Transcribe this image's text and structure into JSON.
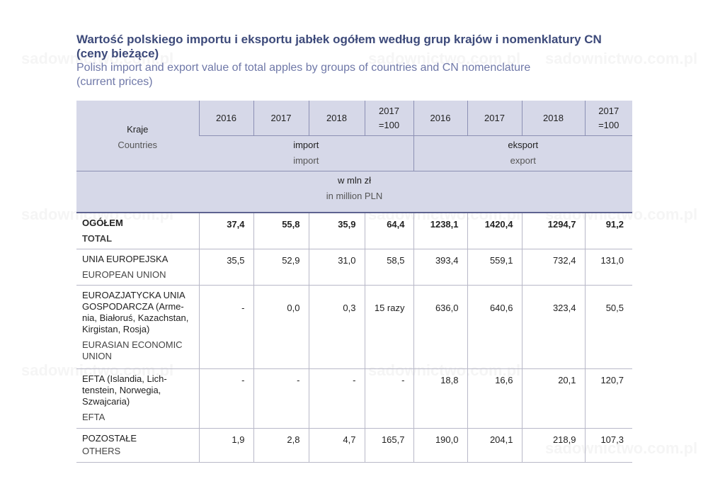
{
  "watermark": "sadownictwo.com.pl",
  "title": {
    "pl_line1": "Wartość polskiego importu i eksportu jabłek ogółem według grup krajów i nomenklatury CN",
    "pl_line2": "(ceny bieżące)",
    "en_line1": "Polish import and export value of total apples by groups of countries and CN nomenclature",
    "en_line2": "(current prices)"
  },
  "header": {
    "countries_pl": "Kraje",
    "countries_en": "Countries",
    "years": [
      "2016",
      "2017",
      "2018"
    ],
    "index_line1": "2017",
    "index_line2": "=100",
    "import_pl": "import",
    "import_en": "import",
    "export_pl": "eksport",
    "export_en": "export",
    "unit_pl": "w mln zł",
    "unit_en": "in million PLN"
  },
  "rows": [
    {
      "label_pl": "OGÓŁEM",
      "label_en": "TOTAL",
      "values": [
        "37,4",
        "55,8",
        "35,9",
        "64,4",
        "1238,1",
        "1420,4",
        "1294,7",
        "91,2"
      ]
    },
    {
      "label_pl": "UNIA EUROPEJSKA",
      "label_en": "EUROPEAN UNION",
      "values": [
        "35,5",
        "52,9",
        "31,0",
        "58,5",
        "393,4",
        "559,1",
        "732,4",
        "131,0"
      ]
    },
    {
      "label_pl": "EUROAZJATYCKA UNIA GOSPODARCZA (Arme-nia, Białoruś, Kazachstan, Kirgistan, Rosja)",
      "label_en": "EURASIAN ECONOMIC UNION",
      "values": [
        "-",
        "0,0",
        "0,3",
        "15 razy",
        "636,0",
        "640,6",
        "323,4",
        "50,5"
      ]
    },
    {
      "label_pl": "EFTA (Islandia, Lich-tenstein, Norwegia, Szwajcaria)",
      "label_en": "EFTA",
      "values": [
        "-",
        "-",
        "-",
        "-",
        "18,8",
        "16,6",
        "20,1",
        "120,7"
      ]
    },
    {
      "label_pl": "POZOSTAŁE",
      "label_en": "OTHERS",
      "values": [
        "1,9",
        "2,8",
        "4,7",
        "165,7",
        "190,0",
        "204,1",
        "218,9",
        "107,3"
      ]
    }
  ]
}
